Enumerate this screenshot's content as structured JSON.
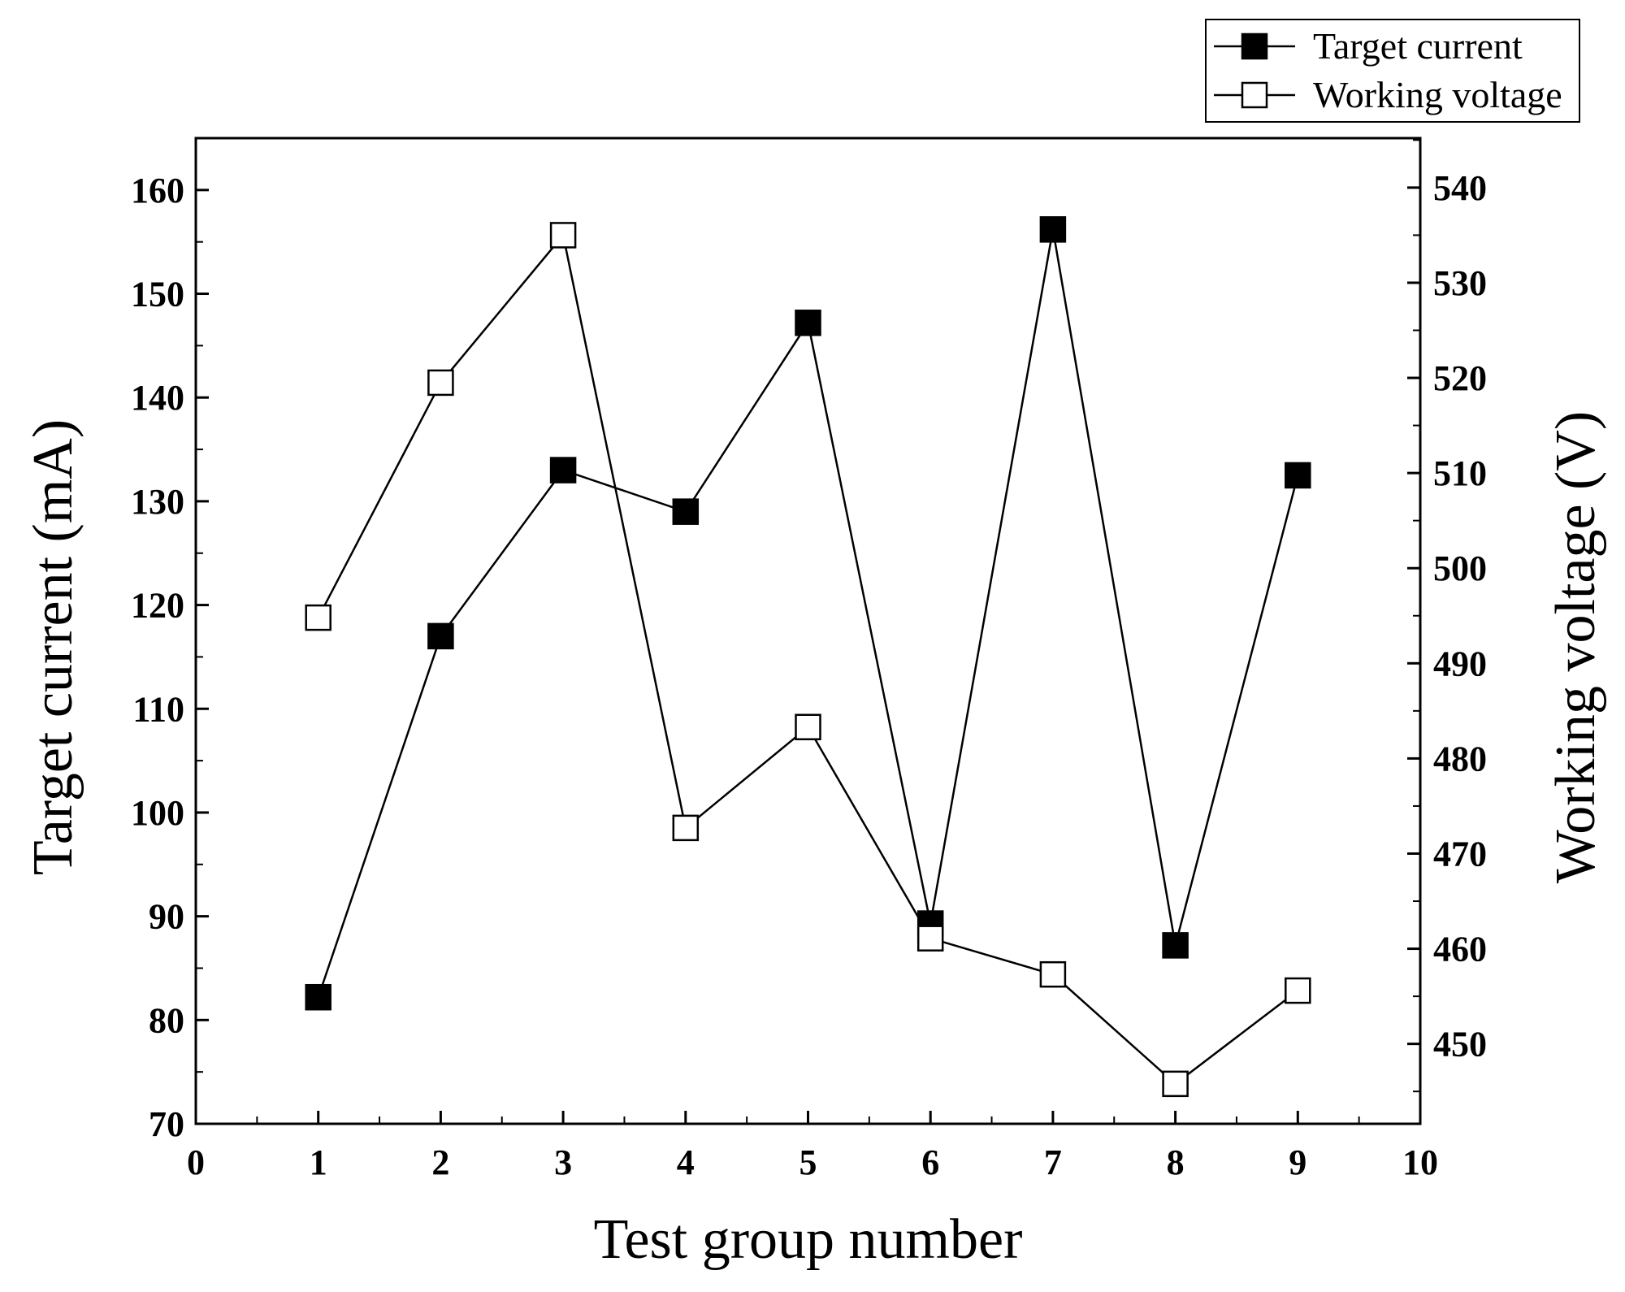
{
  "chart_data": {
    "type": "line",
    "x": [
      1,
      2,
      3,
      4,
      5,
      6,
      7,
      8,
      9
    ],
    "series": [
      {
        "name": "Target current",
        "axis": "left",
        "marker": "filled-square",
        "values": [
          82.2,
          117,
          133,
          129,
          147.2,
          89.3,
          156.2,
          87.2,
          132.5
        ]
      },
      {
        "name": "Working voltage",
        "axis": "right",
        "marker": "open-square",
        "values": [
          494.8,
          519.5,
          535,
          472.7,
          483.3,
          461.1,
          457.3,
          445.8,
          455.6
        ]
      }
    ],
    "xlabel": "Test group number",
    "ylabel": "Target current (mA)",
    "y2label": "Working voltage (V)",
    "xlim": [
      0,
      10
    ],
    "ylim": [
      70,
      165
    ],
    "y2lim": [
      441.6,
      545.2
    ],
    "xticks": [
      "0",
      "1",
      "2",
      "3",
      "4",
      "5",
      "6",
      "7",
      "8",
      "9",
      "10"
    ],
    "yticks": [
      "70",
      "80",
      "90",
      "100",
      "110",
      "120",
      "130",
      "140",
      "150",
      "160"
    ],
    "y2ticks": [
      "450",
      "460",
      "470",
      "480",
      "490",
      "500",
      "510",
      "520",
      "530",
      "540"
    ],
    "legend_position": "top-right-outside",
    "grid": false,
    "colors": {
      "line": "#000000",
      "filled_marker": "#000000",
      "open_marker_fill": "#ffffff"
    }
  }
}
